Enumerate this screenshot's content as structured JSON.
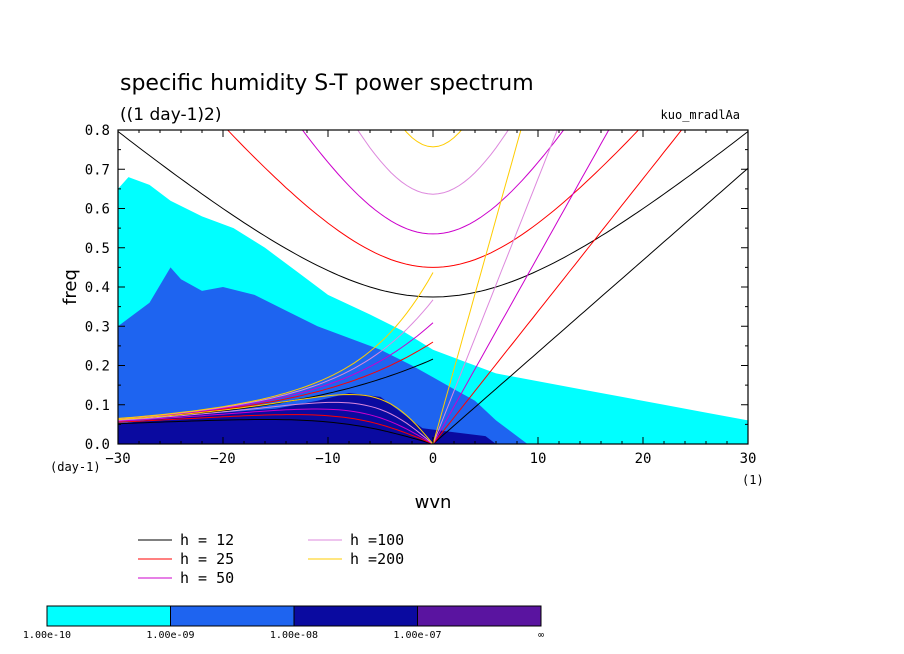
{
  "chart_data": {
    "type": "heatmap",
    "title": "specific humidity S-T power spectrum",
    "subtitle": "((1 day-1)2)",
    "case_label": "kuo_mradlAa",
    "xlabel": "wvn",
    "ylabel": "freq",
    "x_unit": "(1)",
    "y_unit": "(day-1)",
    "xlim": [
      -30,
      30
    ],
    "ylim": [
      0,
      0.8
    ],
    "x_ticks": [
      "−30",
      "−20",
      "−10",
      "0",
      "10",
      "20",
      "30"
    ],
    "x_tick_values": [
      -30,
      -20,
      -10,
      0,
      10,
      20,
      30
    ],
    "y_ticks": [
      "0.0",
      "0.1",
      "0.2",
      "0.3",
      "0.4",
      "0.5",
      "0.6",
      "0.7",
      "0.8"
    ],
    "y_tick_values": [
      0,
      0.1,
      0.2,
      0.3,
      0.4,
      0.5,
      0.6,
      0.7,
      0.8
    ],
    "contour_levels": [
      "1.00e-10",
      "1.00e-09",
      "1.00e-08",
      "1.00e-07",
      "∞"
    ],
    "level_colors": [
      "#00ffff",
      "#1e64f0",
      "#0a0aa0",
      "#5a14a0"
    ],
    "region_boundaries": {
      "level_1e-10": [
        [
          -30,
          0
        ],
        [
          -30,
          0.65
        ],
        [
          -29,
          0.68
        ],
        [
          -27,
          0.66
        ],
        [
          -25,
          0.62
        ],
        [
          -22,
          0.58
        ],
        [
          -19,
          0.55
        ],
        [
          -16,
          0.5
        ],
        [
          -13,
          0.44
        ],
        [
          -10,
          0.38
        ],
        [
          -6,
          0.33
        ],
        [
          -3,
          0.29
        ],
        [
          0,
          0.24
        ],
        [
          3,
          0.21
        ],
        [
          6,
          0.18
        ],
        [
          10,
          0.16
        ],
        [
          14,
          0.14
        ],
        [
          18,
          0.12
        ],
        [
          22,
          0.1
        ],
        [
          26,
          0.08
        ],
        [
          30,
          0.06
        ],
        [
          30,
          0
        ]
      ],
      "level_1e-09": [
        [
          -30,
          0
        ],
        [
          -30,
          0.3
        ],
        [
          -27,
          0.36
        ],
        [
          -25,
          0.45
        ],
        [
          -24,
          0.42
        ],
        [
          -22,
          0.39
        ],
        [
          -20,
          0.4
        ],
        [
          -17,
          0.38
        ],
        [
          -14,
          0.34
        ],
        [
          -11,
          0.3
        ],
        [
          -8,
          0.27
        ],
        [
          -5,
          0.24
        ],
        [
          -2,
          0.2
        ],
        [
          0,
          0.17
        ],
        [
          2,
          0.14
        ],
        [
          4,
          0.11
        ],
        [
          6,
          0.06
        ],
        [
          8,
          0.02
        ],
        [
          9,
          0
        ]
      ],
      "level_1e-08": [
        [
          -30,
          0
        ],
        [
          -30,
          0.05
        ],
        [
          -25,
          0.07
        ],
        [
          -20,
          0.08
        ],
        [
          -15,
          0.09
        ],
        [
          -11,
          0.11
        ],
        [
          -8,
          0.13
        ],
        [
          -5,
          0.12
        ],
        [
          -3,
          0.08
        ],
        [
          -1,
          0.04
        ],
        [
          2,
          0.03
        ],
        [
          5,
          0.02
        ],
        [
          6,
          0
        ]
      ]
    },
    "series": [
      {
        "name": "h = 12",
        "color": "#000000",
        "equivalent_depth": 12
      },
      {
        "name": "h = 25",
        "color": "#ff0000",
        "equivalent_depth": 25
      },
      {
        "name": "h = 50",
        "color": "#cc00cc",
        "equivalent_depth": 50
      },
      {
        "name": "h =100",
        "color": "#dd88dd",
        "equivalent_depth": 100
      },
      {
        "name": "h =200",
        "color": "#ffcc00",
        "equivalent_depth": 200
      }
    ],
    "legend_position": "below-left",
    "grid": false
  }
}
